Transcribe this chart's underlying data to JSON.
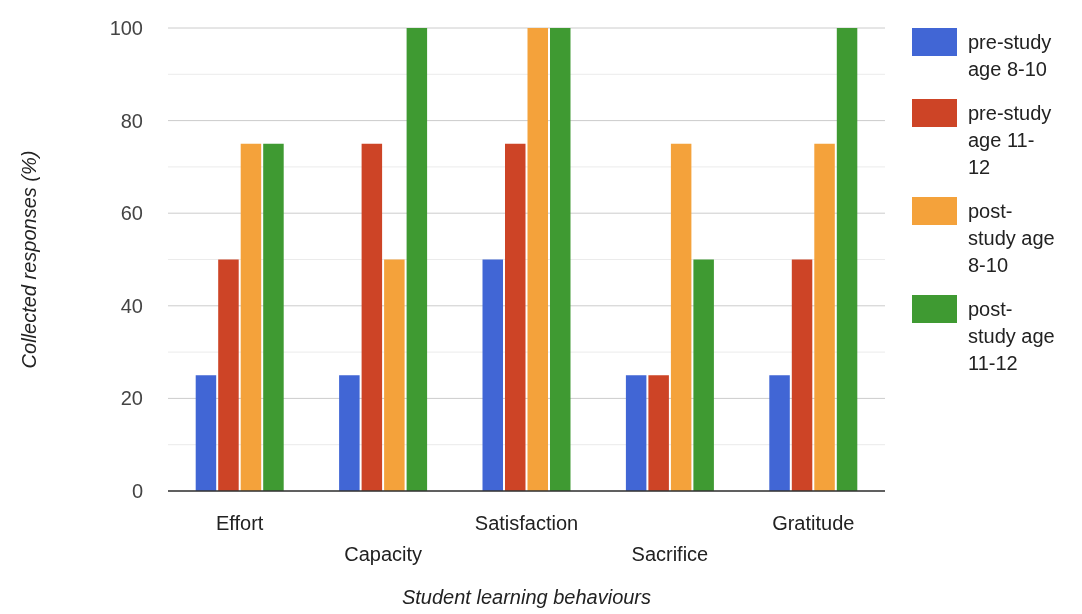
{
  "chart_data": {
    "type": "bar",
    "xlabel": "Student learning behaviours",
    "ylabel": "Collected responses (%)",
    "categories": [
      "Effort",
      "Capacity",
      "Satisfaction",
      "Sacrifice",
      "Gratitude"
    ],
    "series": [
      {
        "name": "pre-study age 8-10",
        "color": "#4166d5",
        "values": [
          25,
          25,
          50,
          25,
          25
        ]
      },
      {
        "name": "pre-study age 11-12",
        "color": "#cd4426",
        "values": [
          50,
          75,
          75,
          25,
          50
        ]
      },
      {
        "name": "post-study age 8-10",
        "color": "#f4a23b",
        "values": [
          75,
          50,
          100,
          75,
          75
        ]
      },
      {
        "name": "post-study age 11-12",
        "color": "#3f9a32",
        "values": [
          75,
          100,
          100,
          50,
          100
        ]
      }
    ],
    "ylim": [
      0,
      100
    ],
    "yticks": [
      0,
      {
        "value": 10,
        "label": null
      },
      20,
      {
        "value": 30,
        "label": null
      },
      40,
      {
        "value": 50,
        "label": null
      },
      60,
      {
        "value": 70,
        "label": null
      },
      80,
      {
        "value": 90,
        "label": null
      },
      100
    ],
    "grid": true,
    "legend": "right"
  }
}
